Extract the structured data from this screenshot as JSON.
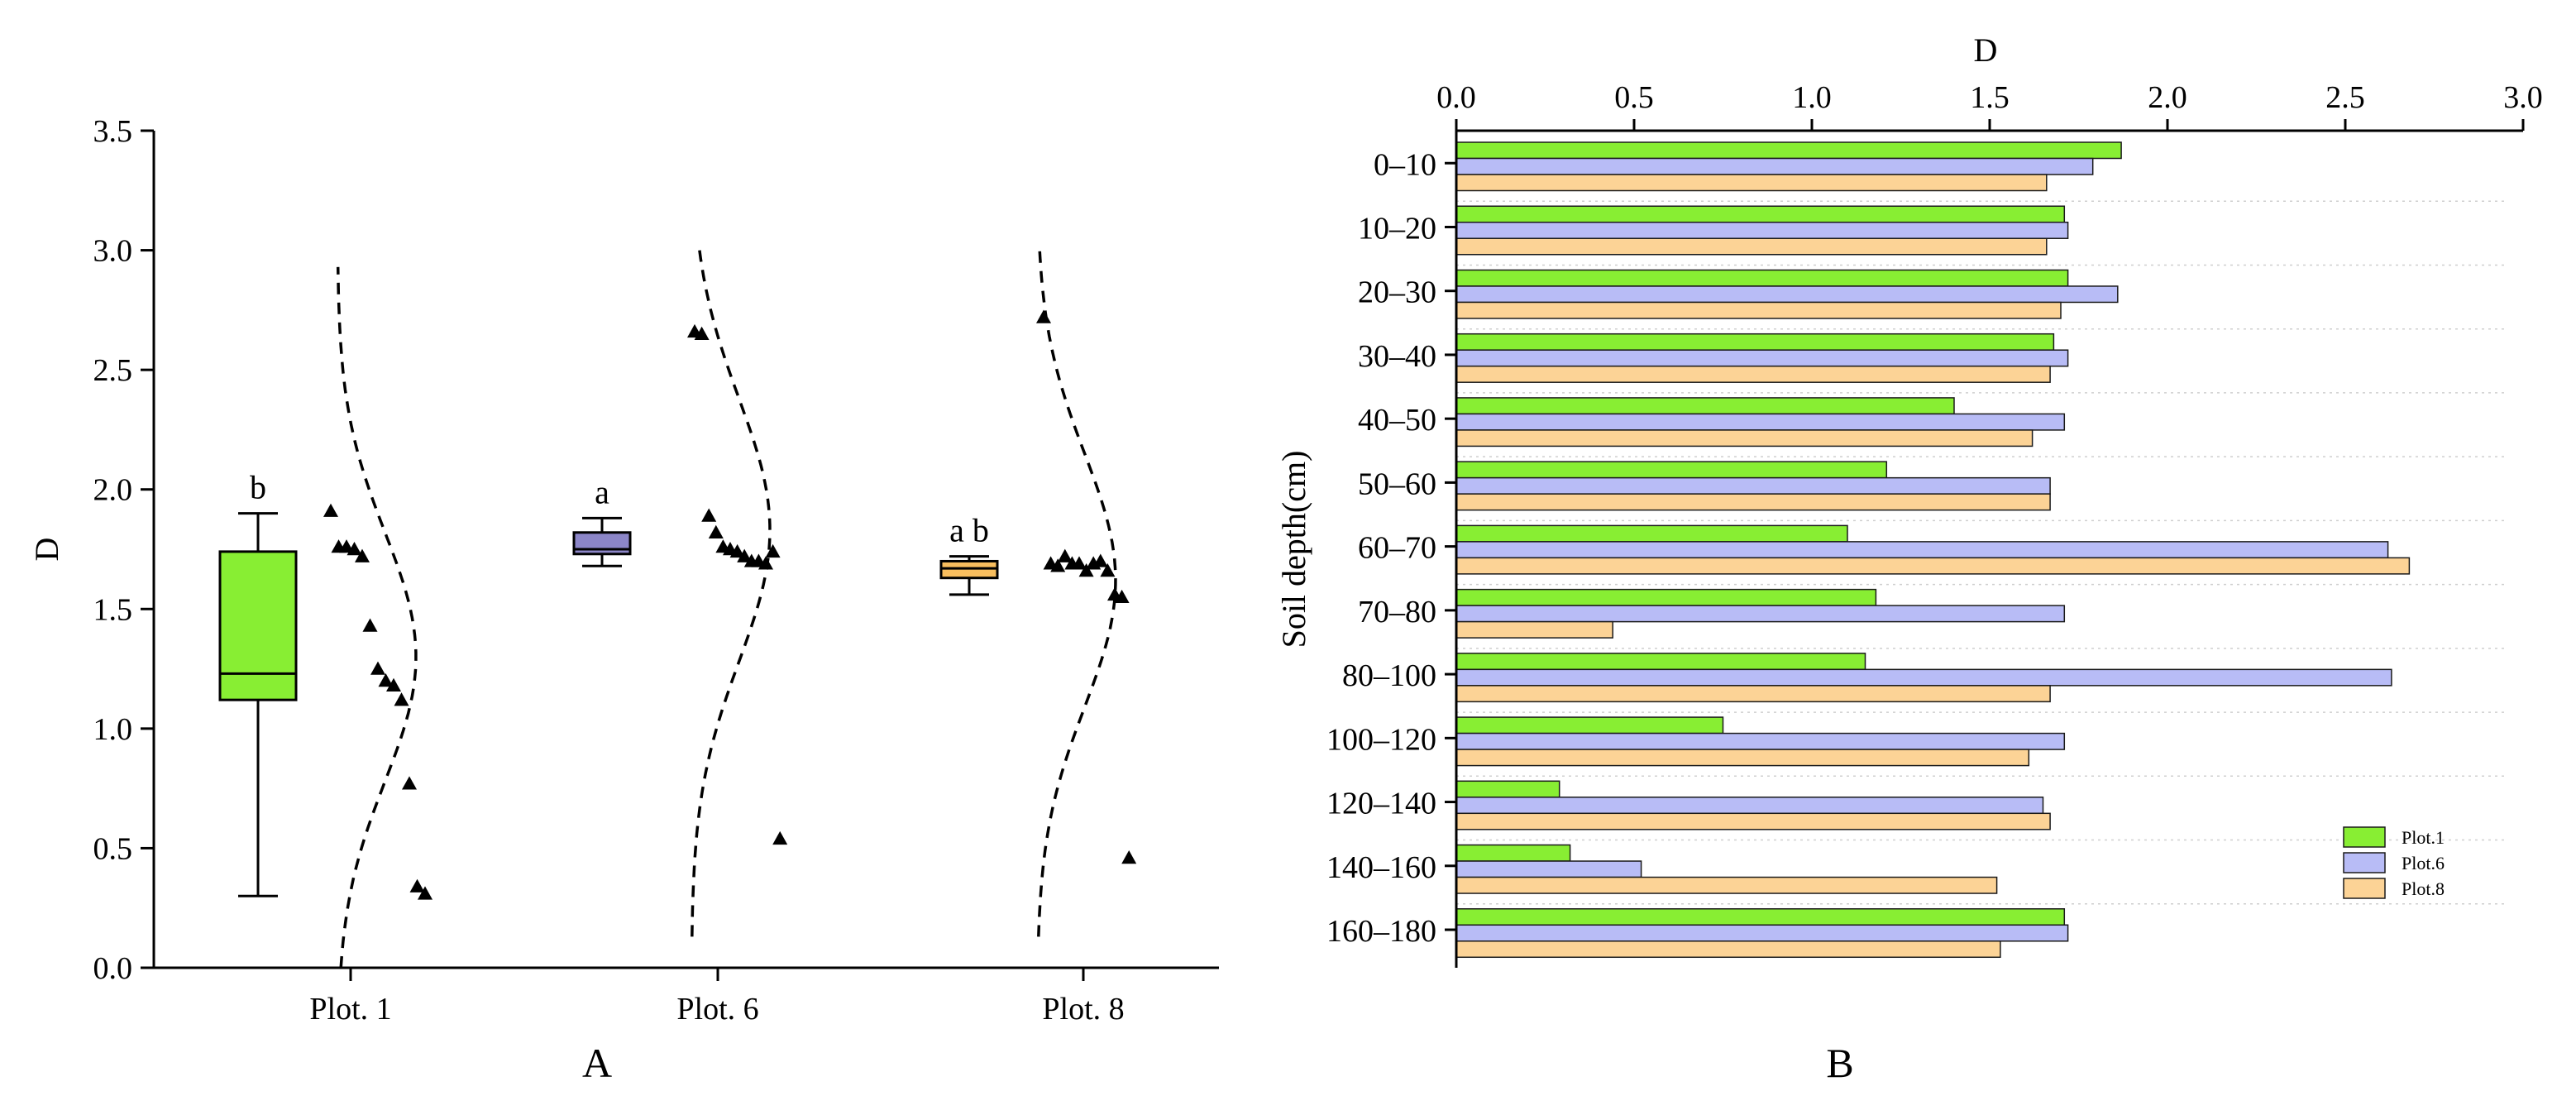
{
  "colors": {
    "plot1": "#88ee33",
    "plot6": "#b8bcf6",
    "plot8": "#fcd396",
    "box6": "#8c86c8",
    "box8": "#f8be5e"
  },
  "chart_data": [
    {
      "type": "box",
      "panel_label": "A",
      "ylabel": "D",
      "xlabel": "",
      "ylim": [
        0,
        3.5
      ],
      "yticks": [
        "0.0",
        "0.5",
        "1.0",
        "1.5",
        "2.0",
        "2.5",
        "3.0",
        "3.5"
      ],
      "categories": [
        "Plot. 1",
        "Plot. 6",
        "Plot. 8"
      ],
      "boxes": [
        {
          "name": "Plot. 1",
          "letter": "b",
          "color_key": "plot1",
          "min": 0.3,
          "q1": 1.12,
          "median": 1.23,
          "q3": 1.74,
          "max": 1.9,
          "points": [
            1.91,
            1.76,
            1.76,
            1.75,
            1.72,
            1.43,
            1.25,
            1.2,
            1.18,
            1.12,
            0.77,
            0.34,
            0.31
          ],
          "curve_range": [
            0.0,
            2.93
          ],
          "curve_mean": 1.3,
          "curve_sd": 0.52
        },
        {
          "name": "Plot. 6",
          "letter": "a",
          "color_key": "box6",
          "min": 1.68,
          "q1": 1.73,
          "median": 1.75,
          "q3": 1.82,
          "max": 1.88,
          "points": [
            2.66,
            2.65,
            1.89,
            1.82,
            1.76,
            1.75,
            1.74,
            1.72,
            1.7,
            1.7,
            1.69,
            1.74,
            0.54
          ],
          "curve_range": [
            0.13,
            3.0
          ],
          "curve_mean": 1.83,
          "curve_sd": 0.55
        },
        {
          "name": "Plot. 8",
          "letter": "a b",
          "color_key": "box8",
          "min": 1.56,
          "q1": 1.63,
          "median": 1.67,
          "q3": 1.7,
          "max": 1.72,
          "points": [
            2.72,
            1.69,
            1.68,
            1.72,
            1.69,
            1.69,
            1.66,
            1.69,
            1.7,
            1.66,
            1.56,
            1.55,
            0.46
          ],
          "curve_range": [
            0.13,
            3.0
          ],
          "curve_mean": 1.62,
          "curve_sd": 0.53
        }
      ]
    },
    {
      "type": "bar",
      "orientation": "horizontal",
      "panel_label": "B",
      "xlabel": "D",
      "ylabel": "Soil depth(cm)",
      "xlim": [
        0,
        3.0
      ],
      "xticks": [
        "0.0",
        "0.5",
        "1.0",
        "1.5",
        "2.0",
        "2.5",
        "3.0"
      ],
      "categories": [
        "0–10",
        "10–20",
        "20–30",
        "30–40",
        "40–50",
        "50–60",
        "60–70",
        "70–80",
        "80–100",
        "100–120",
        "120–140",
        "140–160",
        "160–180"
      ],
      "series": [
        {
          "name": "Plot.1",
          "color_key": "plot1",
          "values": [
            1.87,
            1.71,
            1.72,
            1.68,
            1.4,
            1.21,
            1.1,
            1.18,
            1.15,
            0.75,
            0.29,
            0.32,
            1.71
          ]
        },
        {
          "name": "Plot.6",
          "color_key": "plot6",
          "values": [
            1.79,
            1.72,
            1.86,
            1.72,
            1.71,
            1.67,
            2.62,
            1.71,
            2.63,
            1.71,
            1.65,
            0.52,
            1.72
          ]
        },
        {
          "name": "Plot.8",
          "color_key": "plot8",
          "values": [
            1.66,
            1.66,
            1.7,
            1.67,
            1.62,
            1.67,
            2.68,
            0.44,
            1.67,
            1.61,
            1.67,
            1.52,
            1.53
          ]
        }
      ]
    }
  ]
}
